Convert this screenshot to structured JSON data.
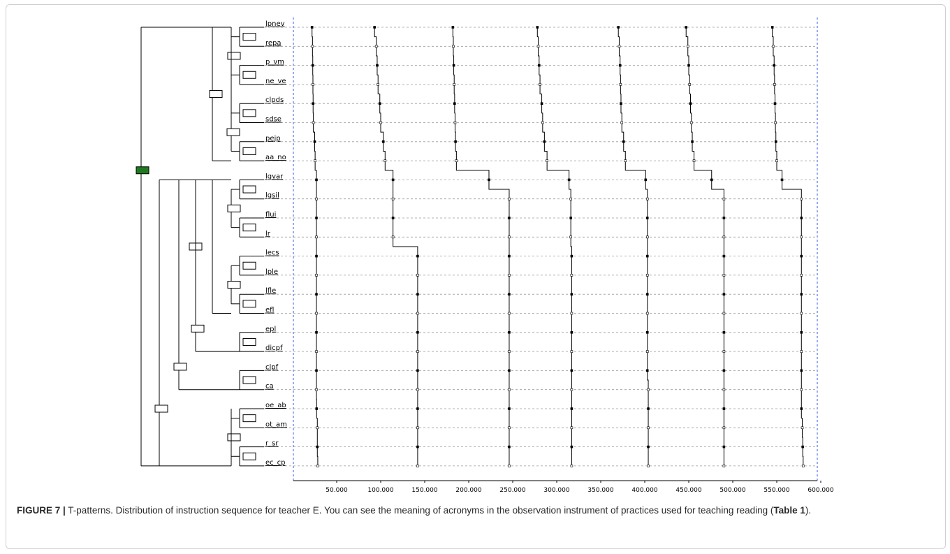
{
  "chart_data": {
    "type": "line",
    "xlabel": "",
    "ylabel": "",
    "xlim": [
      0,
      620000
    ],
    "x_ticks": [
      "50.000",
      "100.000",
      "150.000",
      "200.000",
      "250.000",
      "300.000",
      "350.000",
      "400.000",
      "450.000",
      "500.000",
      "550.000",
      "600.000"
    ],
    "grid": true,
    "categories": [
      "lpnev",
      "repa",
      "p_vm",
      "ne_ve",
      "clpds",
      "sdse",
      "pejp",
      "aa_no",
      "lgvar",
      "lgsil",
      "flui",
      "lr",
      "lecs",
      "lple",
      "lfle",
      "efl",
      "epl",
      "dicpf",
      "clpf",
      "ca",
      "oe_ab",
      "ot_am",
      "r_sr",
      "ec_cp"
    ],
    "series": [
      {
        "values": [
          22000,
          22500,
          22800,
          23000,
          23200,
          23500,
          25000,
          25500,
          27000,
          27000,
          27000,
          27000,
          27000,
          27000,
          27000,
          27000,
          27000,
          27000,
          27000,
          27000,
          27200,
          28000,
          28000,
          28500
        ]
      },
      {
        "values": [
          93000,
          95000,
          96000,
          97000,
          99000,
          100000,
          103000,
          105000,
          114000,
          114000,
          114000,
          114000,
          142000,
          142000,
          142000,
          142000,
          142000,
          142000,
          142000,
          142000,
          142000,
          142000,
          142000,
          142000
        ]
      },
      {
        "values": [
          182000,
          182500,
          183000,
          183500,
          184000,
          184500,
          185000,
          186000,
          223000,
          246000,
          246000,
          246000,
          246000,
          246000,
          246000,
          246000,
          246000,
          246000,
          246000,
          246000,
          246000,
          246000,
          246000,
          246000
        ]
      },
      {
        "values": [
          278000,
          279000,
          280000,
          281000,
          283000,
          284000,
          286000,
          289000,
          314000,
          316000,
          316000,
          316000,
          317000,
          317000,
          317000,
          317000,
          317000,
          317000,
          317000,
          317000,
          317000,
          317000,
          317000,
          317000
        ]
      },
      {
        "values": [
          370000,
          371000,
          372000,
          372500,
          373000,
          374000,
          376000,
          378000,
          401000,
          403000,
          403000,
          403000,
          403000,
          403000,
          403000,
          403000,
          403000,
          403000,
          403000,
          404000,
          404000,
          404000,
          404000,
          404000
        ]
      },
      {
        "values": [
          447000,
          449000,
          450000,
          451000,
          452000,
          453000,
          454000,
          456000,
          476000,
          490000,
          490000,
          490000,
          490000,
          490000,
          490000,
          490000,
          490000,
          490000,
          490000,
          490000,
          490000,
          490000,
          490000,
          490000
        ]
      },
      {
        "values": [
          545000,
          546000,
          547000,
          547500,
          548000,
          548500,
          549000,
          550000,
          556000,
          578000,
          578000,
          578000,
          578000,
          578000,
          578000,
          578000,
          578000,
          578000,
          578000,
          578000,
          578000,
          579000,
          579500,
          580000
        ]
      }
    ],
    "dendrogram": {
      "cluster_box_colors": {
        "root": "#1f7a1f",
        "node": "#ffffff"
      }
    }
  },
  "caption": {
    "label": "FIGURE 7 |",
    "text": " T-patterns. Distribution of instruction sequence for teacher E. You can see the meaning of acronyms in the observation instrument of practices used for teaching reading (",
    "ref": "Table 1",
    "end": ")."
  },
  "colors": {
    "grid": "#9a9a9a",
    "frame_dash": "#3355ee",
    "line": "#000000"
  }
}
